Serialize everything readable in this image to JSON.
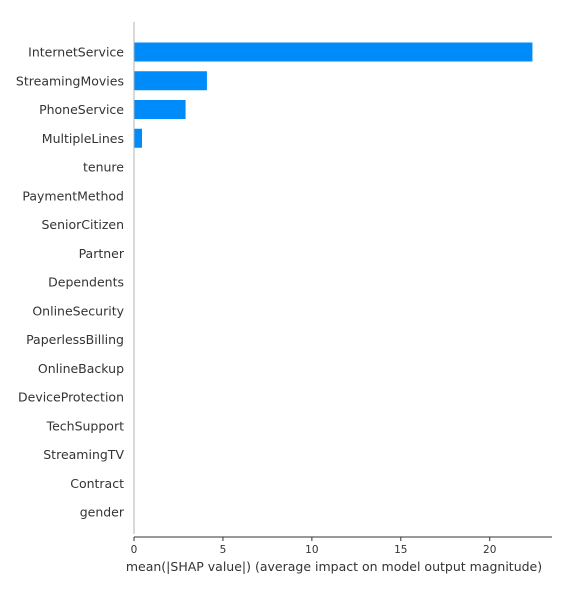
{
  "chart_data": {
    "type": "bar",
    "orientation": "horizontal",
    "title": "",
    "xlabel": "mean(|SHAP value|) (average impact on model output magnitude)",
    "ylabel": "",
    "xlim": [
      0,
      23.5
    ],
    "xticks": [
      0,
      5,
      10,
      15,
      20
    ],
    "grid": false,
    "bar_color": "#008bfb",
    "categories": [
      "InternetService",
      "StreamingMovies",
      "PhoneService",
      "MultipleLines",
      "tenure",
      "PaymentMethod",
      "SeniorCitizen",
      "Partner",
      "Dependents",
      "OnlineSecurity",
      "PaperlessBilling",
      "OnlineBackup",
      "DeviceProtection",
      "TechSupport",
      "StreamingTV",
      "Contract",
      "gender"
    ],
    "values": [
      22.4,
      4.1,
      2.9,
      0.45,
      0,
      0,
      0,
      0,
      0,
      0,
      0,
      0,
      0,
      0,
      0,
      0,
      0
    ]
  }
}
